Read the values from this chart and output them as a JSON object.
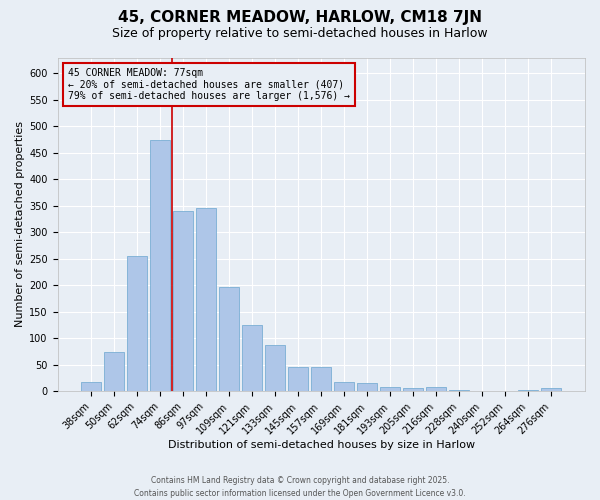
{
  "title1": "45, CORNER MEADOW, HARLOW, CM18 7JN",
  "title2": "Size of property relative to semi-detached houses in Harlow",
  "xlabel": "Distribution of semi-detached houses by size in Harlow",
  "ylabel": "Number of semi-detached properties",
  "categories": [
    "38sqm",
    "50sqm",
    "62sqm",
    "74sqm",
    "86sqm",
    "97sqm",
    "109sqm",
    "121sqm",
    "133sqm",
    "145sqm",
    "157sqm",
    "169sqm",
    "181sqm",
    "193sqm",
    "205sqm",
    "216sqm",
    "228sqm",
    "240sqm",
    "252sqm",
    "264sqm",
    "276sqm"
  ],
  "values": [
    18,
    74,
    255,
    475,
    340,
    345,
    196,
    125,
    88,
    46,
    46,
    17,
    16,
    7,
    6,
    7,
    3,
    1,
    0,
    2,
    5
  ],
  "bar_color": "#aec6e8",
  "bar_edge_color": "#7aafd4",
  "bg_color": "#e8eef5",
  "grid_color": "#ffffff",
  "annotation_line1": "45 CORNER MEADOW: 77sqm",
  "annotation_line2": "← 20% of semi-detached houses are smaller (407)",
  "annotation_line3": "79% of semi-detached houses are larger (1,576) →",
  "annotation_box_color": "#cc0000",
  "vline_color": "#cc0000",
  "ylim": [
    0,
    630
  ],
  "yticks": [
    0,
    50,
    100,
    150,
    200,
    250,
    300,
    350,
    400,
    450,
    500,
    550,
    600
  ],
  "footer": "Contains HM Land Registry data © Crown copyright and database right 2025.\nContains public sector information licensed under the Open Government Licence v3.0.",
  "title1_fontsize": 11,
  "title2_fontsize": 9,
  "xlabel_fontsize": 8,
  "ylabel_fontsize": 8,
  "tick_fontsize": 7,
  "annotation_fontsize": 7,
  "footer_fontsize": 5.5
}
